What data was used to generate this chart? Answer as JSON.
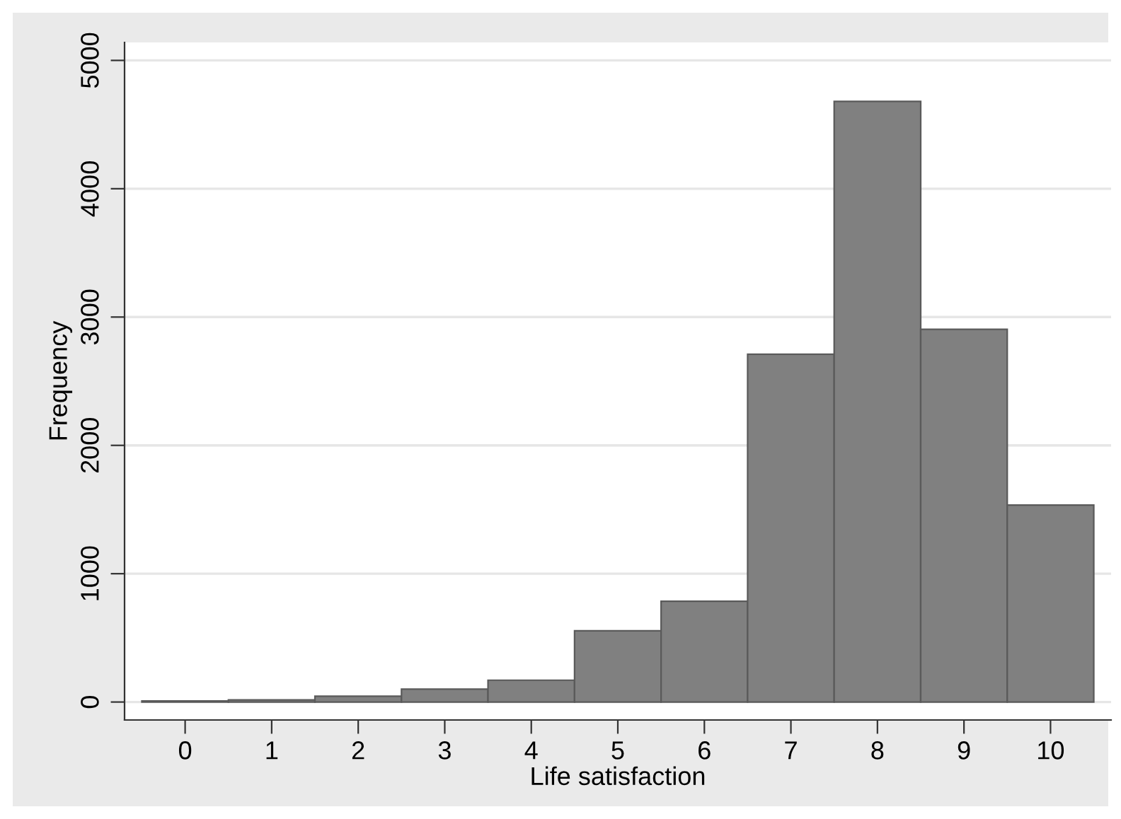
{
  "chart_data": {
    "type": "histogram",
    "xlabel": "Life satisfaction",
    "ylabel": "Frequency",
    "bins": [
      -0.5,
      0.5,
      1.5,
      2.5,
      3.5,
      4.5,
      5.5,
      6.5,
      7.5,
      8.5,
      9.5,
      10.5
    ],
    "values": [
      8,
      16,
      45,
      100,
      170,
      555,
      785,
      2710,
      4680,
      2905,
      1535
    ],
    "color": "#808080",
    "xlim": [
      -0.7,
      10.7
    ],
    "ylim": [
      -140,
      5140
    ],
    "xticks": [
      0,
      1,
      2,
      3,
      4,
      5,
      6,
      7,
      8,
      9,
      10
    ],
    "yticks": [
      0,
      1000,
      2000,
      3000,
      4000,
      5000
    ],
    "grid": "y"
  }
}
